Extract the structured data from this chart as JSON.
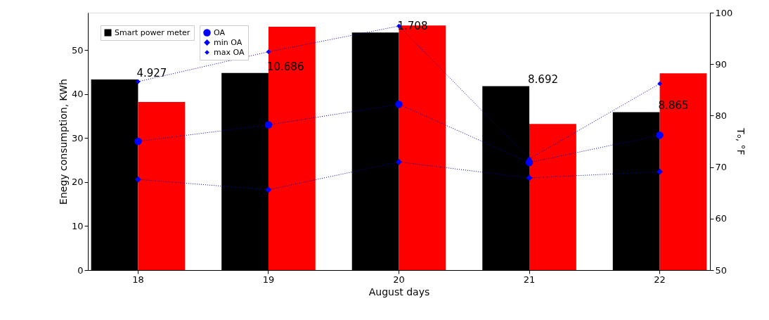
{
  "chart_data": {
    "type": "bar",
    "xlabel": "August days",
    "ylabel": "Enegy consumption, KWh",
    "y2label": "Tₒ, °F",
    "categories": [
      "18",
      "19",
      "20",
      "21",
      "22"
    ],
    "series": [
      {
        "name": "Smart power meter",
        "color": "#000000",
        "values": [
          43.3,
          44.8,
          54.0,
          41.8,
          35.9
        ]
      },
      {
        "color": "#ff0000",
        "values": [
          38.2,
          55.3,
          55.6,
          33.2,
          44.7
        ]
      },
      {
        "name": "OA",
        "type": "line",
        "axis": "y2",
        "color": "#0000ff",
        "marker": "circle",
        "line_style": "dotted",
        "values": [
          75.0,
          78.2,
          82.2,
          70.9,
          76.2
        ]
      },
      {
        "name": "min OA",
        "type": "line",
        "axis": "y2",
        "color": "#0000ff",
        "marker": "diamond",
        "line_style": "dotted",
        "values": [
          67.6,
          65.6,
          71.0,
          67.9,
          69.1
        ]
      },
      {
        "name": "max OA",
        "type": "line",
        "axis": "y2",
        "color": "#0000ff",
        "marker": "diamond",
        "line_style": "dotted",
        "values": [
          86.6,
          92.4,
          97.4,
          71.6,
          86.2
        ]
      }
    ],
    "ylim": [
      0,
      58.5
    ],
    "yticks": [
      0,
      10,
      20,
      30,
      40,
      50
    ],
    "y2lim": [
      50,
      100
    ],
    "y2ticks": [
      50,
      60,
      70,
      80,
      90,
      100
    ],
    "annotations": [
      {
        "text": "4.927",
        "x": "18",
        "y": 43.3
      },
      {
        "text": "10.686",
        "x": "19",
        "y": 44.8
      },
      {
        "text": "1.708",
        "x": "20",
        "y": 54.0
      },
      {
        "text": "8.692",
        "x": "21",
        "y": 41.8
      },
      {
        "text": "8.865",
        "x": "22",
        "y": 35.9
      }
    ],
    "legend": "top left",
    "grid": false
  }
}
